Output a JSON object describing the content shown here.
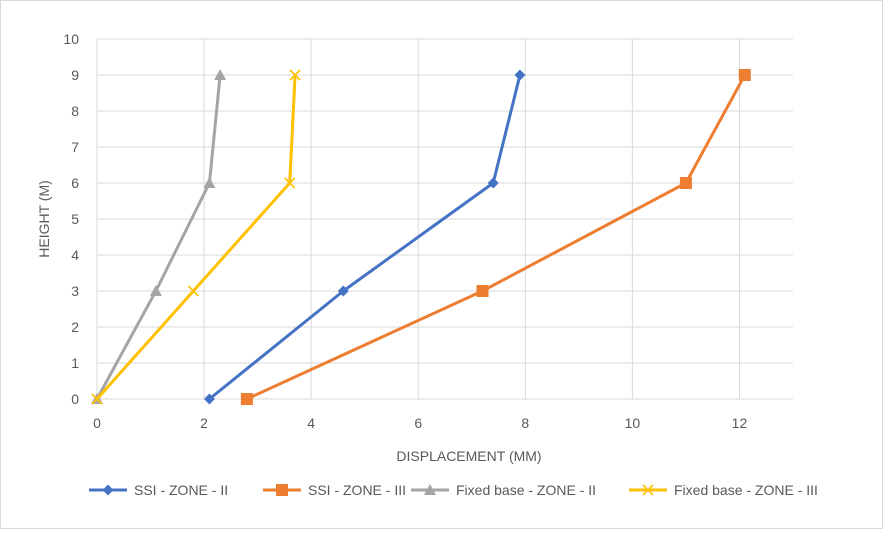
{
  "chart_data": {
    "type": "line",
    "title": "",
    "xlabel": "DISPLACEMENT (MM)",
    "ylabel": "HEIGHT (M)",
    "xlim": [
      0,
      13
    ],
    "ylim": [
      0,
      10
    ],
    "xticks": [
      0,
      2,
      4,
      6,
      8,
      10,
      12
    ],
    "yticks": [
      0,
      1,
      2,
      3,
      4,
      5,
      6,
      7,
      8,
      9,
      10
    ],
    "grid": true,
    "legend": "bottom",
    "series": [
      {
        "name": "SSI - ZONE - II",
        "color": "#4472C4",
        "marker": "diamond",
        "x": [
          2.1,
          4.6,
          7.4,
          7.9
        ],
        "y": [
          0,
          3,
          6,
          9
        ]
      },
      {
        "name": "SSI - ZONE - III",
        "color": "#ED7D31",
        "marker": "square",
        "x": [
          2.8,
          7.2,
          11.0,
          12.1
        ],
        "y": [
          0,
          3,
          6,
          9
        ]
      },
      {
        "name": "Fixed base - ZONE - II",
        "color": "#A5A5A5",
        "marker": "triangle",
        "x": [
          0,
          1.1,
          2.1,
          2.3
        ],
        "y": [
          0,
          3,
          6,
          9
        ]
      },
      {
        "name": "Fixed base - ZONE - III",
        "color": "#FFC000",
        "marker": "x",
        "x": [
          0,
          1.8,
          3.6,
          3.7
        ],
        "y": [
          0,
          3,
          6,
          9
        ]
      }
    ]
  }
}
